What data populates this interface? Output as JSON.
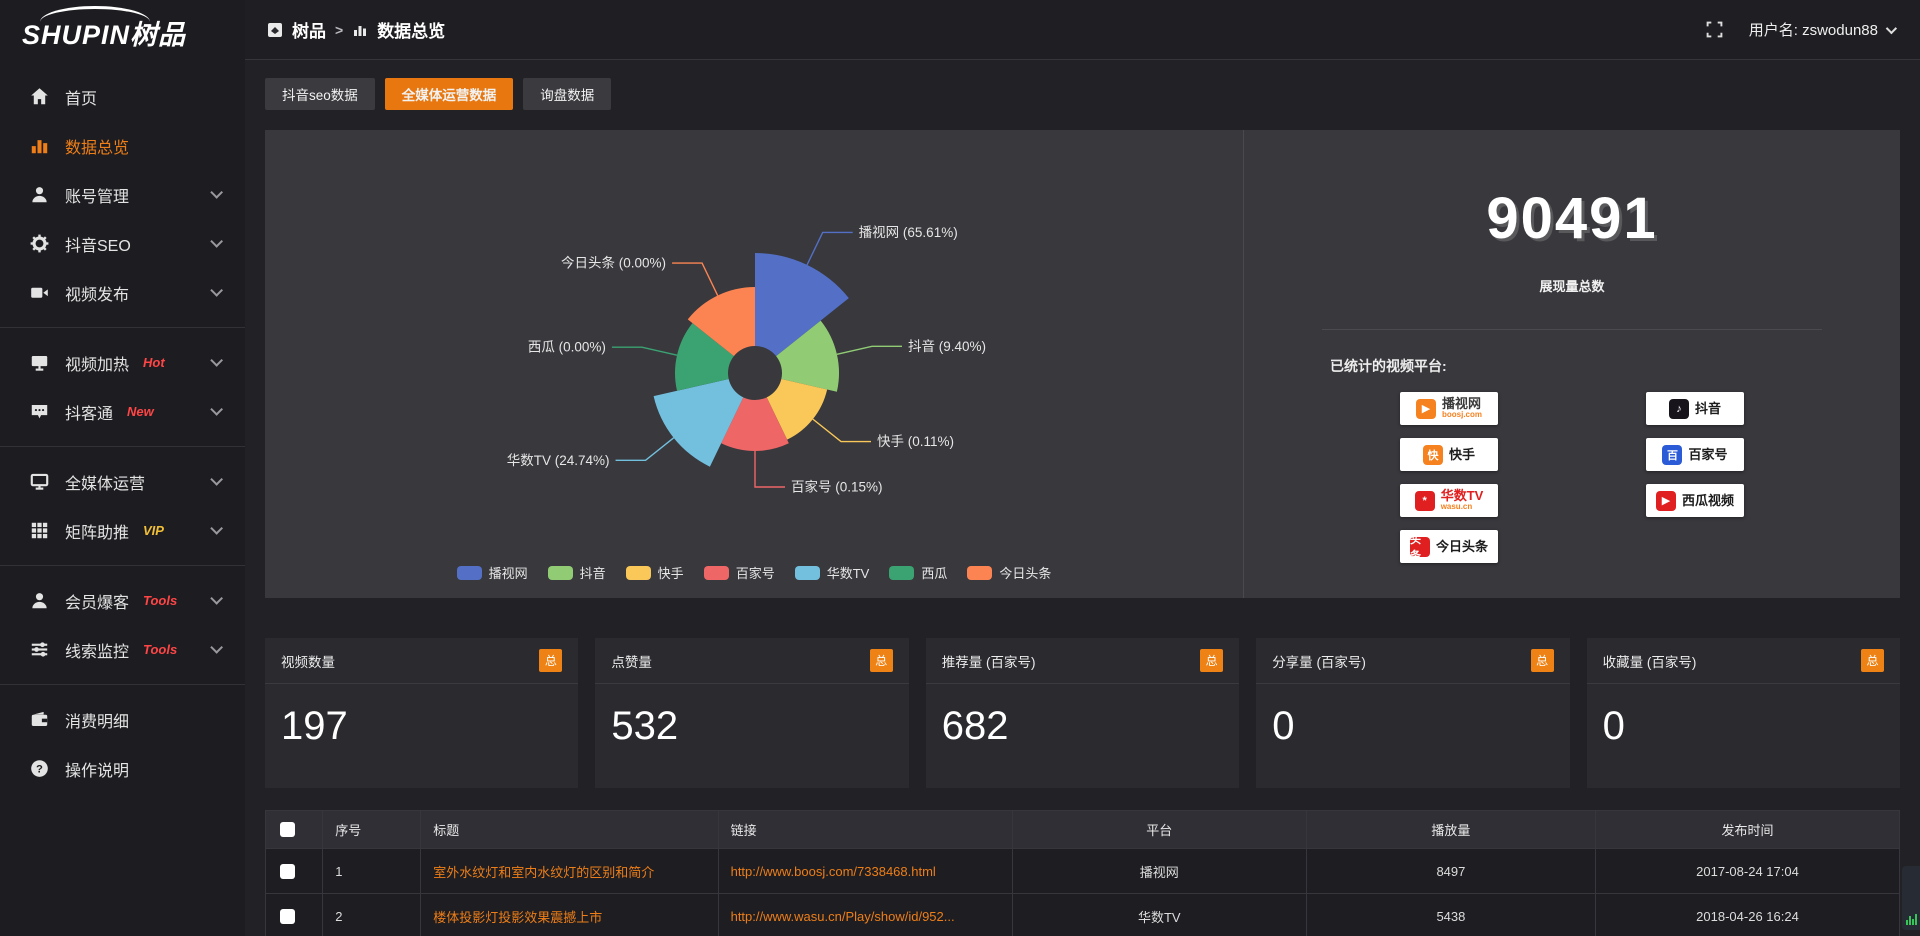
{
  "app": {
    "logo_text": "SHUPIN树品"
  },
  "topbar": {
    "breadcrumb": {
      "root": "树品",
      "separator": ">",
      "current": "数据总览"
    },
    "username": "用户名: zswodun88"
  },
  "tabs": [
    {
      "key": "douyin-seo-data",
      "label": "抖音seo数据",
      "active": false
    },
    {
      "key": "all-media-operation-data",
      "label": "全媒体运营数据",
      "active": true
    },
    {
      "key": "inquiry-data",
      "label": "询盘数据",
      "active": false
    }
  ],
  "sidebar": {
    "items": [
      {
        "key": "home",
        "icon": "home",
        "label": "首页"
      },
      {
        "key": "data-overview",
        "icon": "chart",
        "label": "数据总览",
        "active": true
      },
      {
        "key": "account-management",
        "icon": "user",
        "label": "账号管理",
        "chevron": true
      },
      {
        "key": "douyin-seo",
        "icon": "gear",
        "label": "抖音SEO",
        "chevron": true
      },
      {
        "key": "video-publish",
        "icon": "video",
        "label": "视频发布",
        "chevron": true
      },
      {
        "divider": true
      },
      {
        "key": "video-heat",
        "icon": "screen",
        "label": "视频加热",
        "badge": "Hot",
        "badge_color": "#ff4545",
        "chevron": true
      },
      {
        "key": "douketong",
        "icon": "chat",
        "label": "抖客通",
        "badge": "New",
        "badge_color": "#ff4545",
        "chevron": true
      },
      {
        "divider": true
      },
      {
        "key": "all-media-operation",
        "icon": "monitor",
        "label": "全媒体运营",
        "chevron": true
      },
      {
        "key": "matrix-boost",
        "icon": "grid",
        "label": "矩阵助推",
        "badge": "VIP",
        "badge_color": "#f2c037",
        "chevron": true
      },
      {
        "divider": true
      },
      {
        "key": "member-baoke",
        "icon": "person",
        "label": "会员爆客",
        "badge": "Tools",
        "badge_color": "#ff4545",
        "chevron": true
      },
      {
        "key": "clue-monitor",
        "icon": "sliders",
        "label": "线索监控",
        "badge": "Tools",
        "badge_color": "#ff4545",
        "chevron": true
      },
      {
        "divider": true
      },
      {
        "key": "consumption-detail",
        "icon": "wallet",
        "label": "消费明细"
      },
      {
        "key": "operation-guide",
        "icon": "help",
        "label": "操作说明"
      }
    ]
  },
  "chart_data": {
    "type": "pie",
    "subtype": "nightingale-rose",
    "legend_position": "bottom",
    "label_format": "{name} ({percent}%)",
    "items": [
      {
        "name": "播视网",
        "percent": 65.61,
        "color": "#5470c6",
        "radius": 120
      },
      {
        "name": "抖音",
        "percent": 9.4,
        "color": "#91cc75",
        "radius": 84
      },
      {
        "name": "快手",
        "percent": 0.11,
        "color": "#fac858",
        "radius": 74
      },
      {
        "name": "百家号",
        "percent": 0.15,
        "color": "#ee6666",
        "radius": 78
      },
      {
        "name": "华数TV",
        "percent": 24.74,
        "color": "#73c0de",
        "radius": 104
      },
      {
        "name": "西瓜",
        "percent": 0.0,
        "color": "#3ba272",
        "radius": 80
      },
      {
        "name": "今日头条",
        "percent": 0.0,
        "color": "#fc8452",
        "radius": 86
      }
    ]
  },
  "summary": {
    "total_value": "90491",
    "total_label": "展现量总数",
    "platforms_title": "已统计的视频平台:",
    "platforms_left": [
      {
        "key": "boshiwang",
        "name": "播视网",
        "sub": "boosj.com",
        "icon_text": "▶",
        "icon_color": "#f5811f",
        "name_color": "#3a3a3a"
      },
      {
        "key": "kuaishou",
        "name": "快手",
        "icon_text": "快",
        "icon_color": "#f5811f",
        "name_color": "#1c1c1c"
      },
      {
        "key": "wasu-tv",
        "name": "华数TV",
        "sub": "wasu.cn",
        "icon_text": "*",
        "icon_color": "#e02020",
        "name_color": "#e02020"
      },
      {
        "key": "jinri-toutiao",
        "name": "今日头条",
        "icon_text": "头条",
        "icon_color": "#e02020",
        "name_color": "#1c1c1c"
      }
    ],
    "platforms_right": [
      {
        "key": "douyin",
        "name": "抖音",
        "icon_text": "♪",
        "icon_color": "#17141c",
        "name_color": "#1c1c1c"
      },
      {
        "key": "baijiahao",
        "name": "百家号",
        "icon_text": "百",
        "icon_color": "#2b5bd7",
        "name_color": "#1c1c1c"
      },
      {
        "key": "xigua-video",
        "name": "西瓜视频",
        "icon_text": "▶",
        "icon_color": "#e02020",
        "name_color": "#1c1c1c"
      }
    ]
  },
  "stats_cards": [
    {
      "key": "video-count",
      "label": "视频数量",
      "badge": "总",
      "value": "197"
    },
    {
      "key": "like-count",
      "label": "点赞量",
      "badge": "总",
      "value": "532"
    },
    {
      "key": "recommend-count",
      "label": "推荐量 (百家号)",
      "badge": "总",
      "value": "682"
    },
    {
      "key": "share-count",
      "label": "分享量 (百家号)",
      "badge": "总",
      "value": "0"
    },
    {
      "key": "favorite-count",
      "label": "收藏量 (百家号)",
      "badge": "总",
      "value": "0"
    }
  ],
  "table": {
    "columns": [
      "序号",
      "标题",
      "链接",
      "平台",
      "播放量",
      "发布时间"
    ],
    "rows": [
      {
        "num": "1",
        "title": "室外水纹灯和室内水纹灯的区别和简介",
        "link": "http://www.boosj.com/7338468.html",
        "platform": "播视网",
        "plays": "8497",
        "time": "2017-08-24 17:04"
      },
      {
        "num": "2",
        "title": "楼体投影灯投影效果震撼上市",
        "link": "http://www.wasu.cn/Play/show/id/952...",
        "platform": "华数TV",
        "plays": "5438",
        "time": "2018-04-26 16:24"
      }
    ]
  },
  "colors": {
    "accent": "#e8770f",
    "link": "#ee7e17",
    "panel": "#38383d"
  }
}
